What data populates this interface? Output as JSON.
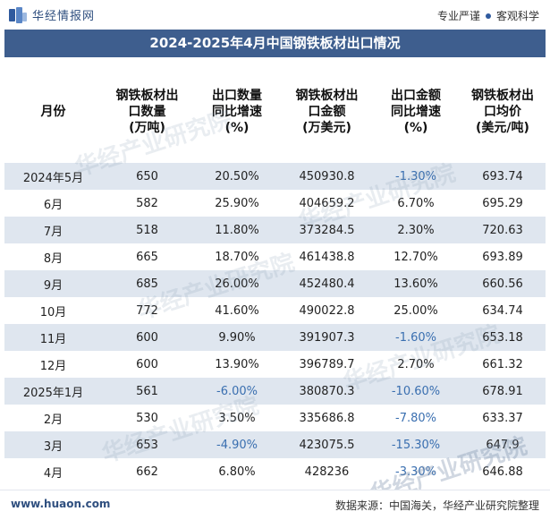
{
  "header": {
    "site_name": "华经情报网",
    "slogan_left": "专业严谨",
    "slogan_right": "客观科学"
  },
  "title": "2024-2025年4月中国钢铁板材出口情况",
  "table": {
    "columns": [
      "月份",
      "钢铁板材出\n口数量\n(万吨)",
      "出口数量\n同比增速\n(%)",
      "钢铁板材出\n口金额\n(万美元)",
      "出口金额\n同比增速\n(%)",
      "钢铁板材出\n口均价\n(美元/吨)"
    ],
    "rows": [
      [
        "2024年5月",
        "650",
        "20.50%",
        "450930.8",
        "-1.30%",
        "693.74"
      ],
      [
        "6月",
        "582",
        "25.90%",
        "404659.2",
        "6.70%",
        "695.29"
      ],
      [
        "7月",
        "518",
        "11.80%",
        "373284.5",
        "2.30%",
        "720.63"
      ],
      [
        "8月",
        "665",
        "18.70%",
        "461438.8",
        "12.70%",
        "693.89"
      ],
      [
        "9月",
        "685",
        "26.00%",
        "452480.4",
        "13.60%",
        "660.56"
      ],
      [
        "10月",
        "772",
        "41.60%",
        "490022.8",
        "25.00%",
        "634.74"
      ],
      [
        "11月",
        "600",
        "9.90%",
        "391907.3",
        "-1.60%",
        "653.18"
      ],
      [
        "12月",
        "600",
        "13.90%",
        "396789.7",
        "2.70%",
        "661.32"
      ],
      [
        "2025年1月",
        "561",
        "-6.00%",
        "380870.3",
        "-10.60%",
        "678.91"
      ],
      [
        "2月",
        "530",
        "3.50%",
        "335686.8",
        "-7.80%",
        "633.37"
      ],
      [
        "3月",
        "653",
        "-4.90%",
        "423075.5",
        "-15.30%",
        "647.9"
      ],
      [
        "4月",
        "662",
        "6.80%",
        "428236",
        "-3.30%",
        "646.88"
      ]
    ]
  },
  "watermark": "华经产业研究院",
  "footer": {
    "url": "www.huaon.com",
    "source": "数据来源：中国海关，华经产业研究院整理"
  },
  "colors": {
    "title_bg": "#3e5e8e",
    "stripe": "#dfe6ef",
    "negative_text": "#3a6fb0",
    "brand": "#2f5a9e"
  }
}
